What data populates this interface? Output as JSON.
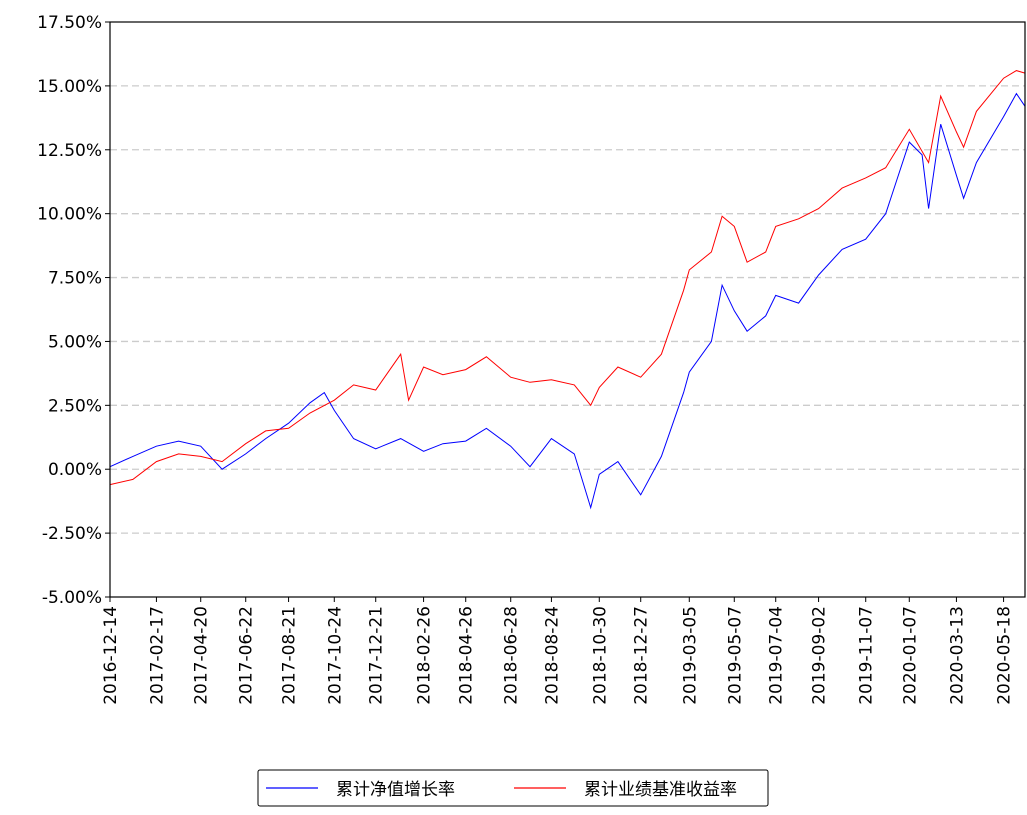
{
  "chart_data": {
    "type": "line",
    "xlim": [
      "2016-12-14",
      "2020-06-17"
    ],
    "xticks": [
      "2016-12-14",
      "2017-02-17",
      "2017-04-20",
      "2017-06-22",
      "2017-08-21",
      "2017-10-24",
      "2017-12-21",
      "2018-02-26",
      "2018-04-26",
      "2018-06-28",
      "2018-08-24",
      "2018-10-30",
      "2018-12-27",
      "2019-03-05",
      "2019-05-07",
      "2019-07-04",
      "2019-09-02",
      "2019-11-07",
      "2020-01-07",
      "2020-03-13",
      "2020-05-18"
    ],
    "ylim": [
      -5,
      17.5
    ],
    "yticks": [
      {
        "value": -5,
        "label": "-5.00%"
      },
      {
        "value": -2.5,
        "label": "-2.50%"
      },
      {
        "value": 0,
        "label": "0.00%"
      },
      {
        "value": 2.5,
        "label": "2.50%"
      },
      {
        "value": 5,
        "label": "5.00%"
      },
      {
        "value": 7.5,
        "label": "7.50%"
      },
      {
        "value": 10,
        "label": "10.00%"
      },
      {
        "value": 12.5,
        "label": "12.50%"
      },
      {
        "value": 15,
        "label": "15.00%"
      },
      {
        "value": 17.5,
        "label": "17.50%"
      }
    ],
    "grid": true,
    "legend": "bottom",
    "series": [
      {
        "name": "累计净值增长率",
        "color": "#0000ff",
        "x": [
          "2016-12-14",
          "2017-01-15",
          "2017-02-17",
          "2017-03-20",
          "2017-04-20",
          "2017-05-20",
          "2017-06-22",
          "2017-07-20",
          "2017-08-21",
          "2017-09-20",
          "2017-10-10",
          "2017-10-24",
          "2017-11-20",
          "2017-12-21",
          "2018-01-25",
          "2018-02-26",
          "2018-03-25",
          "2018-04-26",
          "2018-05-25",
          "2018-06-28",
          "2018-07-25",
          "2018-08-24",
          "2018-09-25",
          "2018-10-18",
          "2018-10-30",
          "2018-11-25",
          "2018-12-27",
          "2019-01-25",
          "2019-02-25",
          "2019-03-05",
          "2019-04-05",
          "2019-04-20",
          "2019-05-07",
          "2019-05-25",
          "2019-06-20",
          "2019-07-04",
          "2019-08-05",
          "2019-09-02",
          "2019-10-05",
          "2019-11-07",
          "2019-12-05",
          "2020-01-07",
          "2020-01-25",
          "2020-02-03",
          "2020-02-20",
          "2020-03-13",
          "2020-03-23",
          "2020-04-10",
          "2020-05-18",
          "2020-06-05",
          "2020-06-17"
        ],
        "values": [
          0.1,
          0.5,
          0.9,
          1.1,
          0.9,
          0.0,
          0.6,
          1.2,
          1.8,
          2.6,
          3.0,
          2.3,
          1.2,
          0.8,
          1.2,
          0.7,
          1.0,
          1.1,
          1.6,
          0.9,
          0.1,
          1.2,
          0.6,
          -1.5,
          -0.2,
          0.3,
          -1.0,
          0.5,
          3.0,
          3.8,
          5.0,
          7.2,
          6.2,
          5.4,
          6.0,
          6.8,
          6.5,
          7.6,
          8.6,
          9.0,
          10.0,
          12.8,
          12.3,
          10.2,
          13.5,
          11.5,
          10.6,
          12.0,
          13.8,
          14.7,
          14.2
        ]
      },
      {
        "name": "累计业绩基准收益率",
        "color": "#ff0000",
        "x": [
          "2016-12-14",
          "2017-01-15",
          "2017-02-17",
          "2017-03-20",
          "2017-04-20",
          "2017-05-20",
          "2017-06-22",
          "2017-07-20",
          "2017-08-21",
          "2017-09-20",
          "2017-10-24",
          "2017-11-20",
          "2017-12-21",
          "2018-01-25",
          "2018-02-05",
          "2018-02-26",
          "2018-03-25",
          "2018-04-26",
          "2018-05-25",
          "2018-06-28",
          "2018-07-25",
          "2018-08-24",
          "2018-09-25",
          "2018-10-18",
          "2018-10-30",
          "2018-11-25",
          "2018-12-27",
          "2019-01-25",
          "2019-02-25",
          "2019-03-05",
          "2019-04-05",
          "2019-04-20",
          "2019-05-07",
          "2019-05-25",
          "2019-06-20",
          "2019-07-04",
          "2019-08-05",
          "2019-09-02",
          "2019-10-05",
          "2019-11-07",
          "2019-12-05",
          "2020-01-07",
          "2020-02-03",
          "2020-02-20",
          "2020-03-13",
          "2020-03-23",
          "2020-04-10",
          "2020-05-18",
          "2020-06-05",
          "2020-06-17"
        ],
        "values": [
          -0.6,
          -0.4,
          0.3,
          0.6,
          0.5,
          0.3,
          1.0,
          1.5,
          1.6,
          2.2,
          2.7,
          3.3,
          3.1,
          4.5,
          2.7,
          4.0,
          3.7,
          3.9,
          4.4,
          3.6,
          3.4,
          3.5,
          3.3,
          2.5,
          3.2,
          4.0,
          3.6,
          4.5,
          7.0,
          7.8,
          8.5,
          9.9,
          9.5,
          8.1,
          8.5,
          9.5,
          9.8,
          10.2,
          11.0,
          11.4,
          11.8,
          13.3,
          12.0,
          14.6,
          13.2,
          12.6,
          14.0,
          15.3,
          15.6,
          15.5
        ]
      }
    ]
  }
}
